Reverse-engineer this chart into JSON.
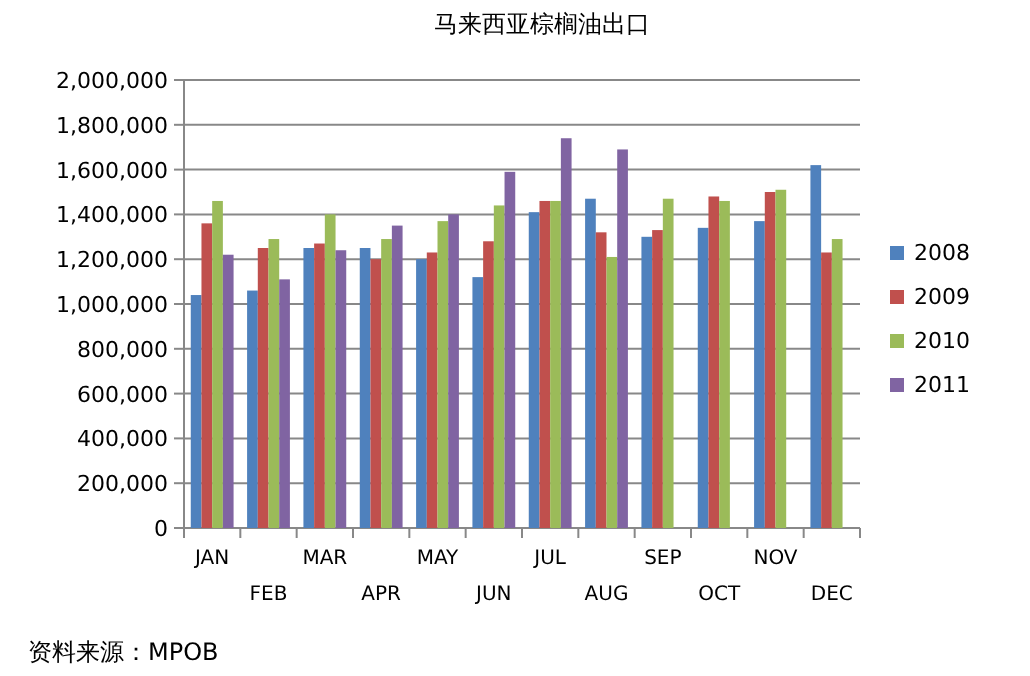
{
  "chart_data": {
    "type": "bar",
    "title": "马来西亚棕榈油出口",
    "categories": [
      "JAN",
      "FEB",
      "MAR",
      "APR",
      "MAY",
      "JUN",
      "JUL",
      "AUG",
      "SEP",
      "OCT",
      "NOV",
      "DEC"
    ],
    "series": [
      {
        "name": "2008",
        "color": "#4f81bd",
        "values": [
          1040000,
          1060000,
          1250000,
          1250000,
          1200000,
          1120000,
          1410000,
          1470000,
          1300000,
          1340000,
          1370000,
          1620000
        ]
      },
      {
        "name": "2009",
        "color": "#c0504d",
        "values": [
          1360000,
          1250000,
          1270000,
          1200000,
          1230000,
          1280000,
          1460000,
          1320000,
          1330000,
          1480000,
          1500000,
          1230000
        ]
      },
      {
        "name": "2010",
        "color": "#9bbb59",
        "values": [
          1460000,
          1290000,
          1400000,
          1290000,
          1370000,
          1440000,
          1460000,
          1210000,
          1470000,
          1460000,
          1510000,
          1290000
        ]
      },
      {
        "name": "2011",
        "color": "#8064a2",
        "values": [
          1220000,
          1110000,
          1240000,
          1350000,
          1400000,
          1590000,
          1740000,
          1690000,
          null,
          null,
          null,
          null
        ]
      }
    ],
    "ylim": [
      0,
      2000000
    ],
    "yticks": [
      {
        "value": 0,
        "label": "0"
      },
      {
        "value": 200000,
        "label": "200,000"
      },
      {
        "value": 400000,
        "label": "400,000"
      },
      {
        "value": 600000,
        "label": "600,000"
      },
      {
        "value": 800000,
        "label": "800,000"
      },
      {
        "value": 1000000,
        "label": "1,000,000"
      },
      {
        "value": 1200000,
        "label": "1,200,000"
      },
      {
        "value": 1400000,
        "label": "1,400,000"
      },
      {
        "value": 1600000,
        "label": "1,600,000"
      },
      {
        "value": 1800000,
        "label": "1,800,000"
      },
      {
        "value": 2000000,
        "label": "2,000,000"
      }
    ],
    "grid": "y",
    "legend": "right",
    "annotations": [
      "资料来源：MPOB"
    ]
  }
}
